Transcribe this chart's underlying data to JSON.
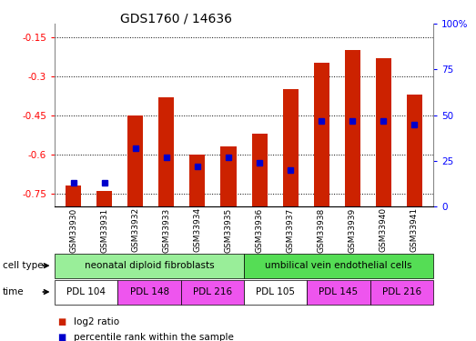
{
  "title": "GDS1760 / 14636",
  "samples": [
    "GSM33930",
    "GSM33931",
    "GSM33932",
    "GSM33933",
    "GSM33934",
    "GSM33935",
    "GSM33936",
    "GSM33937",
    "GSM33938",
    "GSM33939",
    "GSM33940",
    "GSM33941"
  ],
  "log2_ratios": [
    -0.72,
    -0.74,
    -0.45,
    -0.38,
    -0.6,
    -0.57,
    -0.52,
    -0.35,
    -0.25,
    -0.2,
    -0.23,
    -0.37
  ],
  "percentile_ranks": [
    13,
    13,
    32,
    27,
    22,
    27,
    24,
    20,
    47,
    47,
    47,
    45
  ],
  "ylim_left": [
    -0.8,
    -0.1
  ],
  "ylim_right": [
    0,
    100
  ],
  "yticks_left": [
    -0.75,
    -0.6,
    -0.45,
    -0.3,
    -0.15
  ],
  "yticks_right": [
    0,
    25,
    50,
    75,
    100
  ],
  "ytick_labels_left": [
    "-0.75",
    "-0.6",
    "-0.45",
    "-0.3",
    "-0.15"
  ],
  "ytick_labels_right": [
    "0",
    "25",
    "50",
    "75",
    "100%"
  ],
  "bar_color": "#cc2200",
  "dot_color": "#0000cc",
  "grid_color": "black",
  "cell_type_groups": [
    {
      "label": "neonatal diploid fibroblasts",
      "start": 0,
      "end": 5,
      "color": "#99ee99"
    },
    {
      "label": "umbilical vein endothelial cells",
      "start": 6,
      "end": 11,
      "color": "#55dd55"
    }
  ],
  "time_groups": [
    {
      "label": "PDL 104",
      "start": 0,
      "end": 1,
      "color": "#ffffff"
    },
    {
      "label": "PDL 148",
      "start": 2,
      "end": 3,
      "color": "#ee55ee"
    },
    {
      "label": "PDL 216",
      "start": 4,
      "end": 5,
      "color": "#ee55ee"
    },
    {
      "label": "PDL 105",
      "start": 6,
      "end": 7,
      "color": "#ffffff"
    },
    {
      "label": "PDL 145",
      "start": 8,
      "end": 9,
      "color": "#ee55ee"
    },
    {
      "label": "PDL 216",
      "start": 10,
      "end": 11,
      "color": "#ee55ee"
    }
  ],
  "legend_items": [
    {
      "label": "log2 ratio",
      "color": "#cc2200"
    },
    {
      "label": "percentile rank within the sample",
      "color": "#0000cc"
    }
  ],
  "bar_width": 0.5,
  "ax_bg": "#ffffff"
}
